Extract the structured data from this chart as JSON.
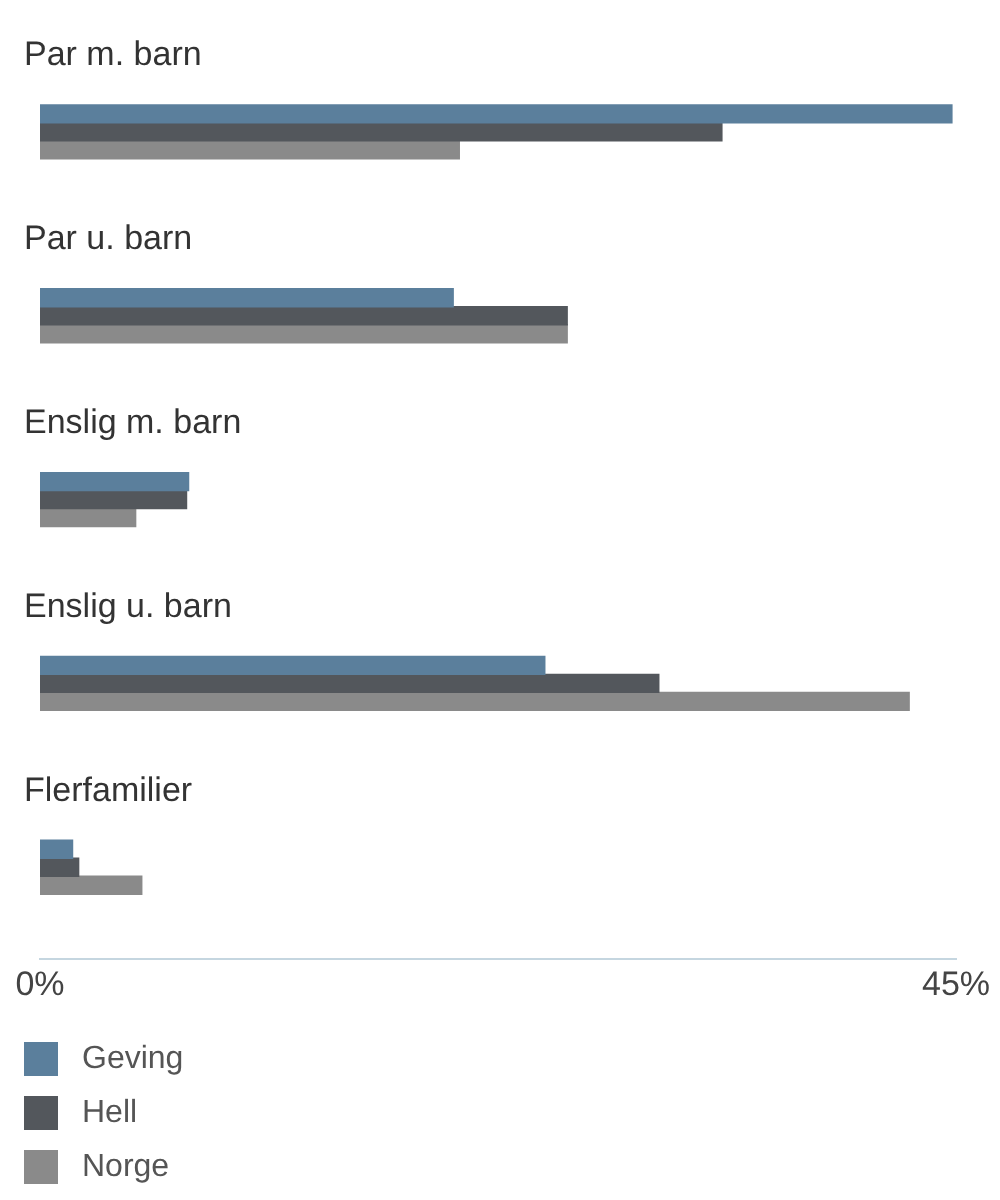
{
  "chart_data": {
    "type": "bar",
    "orientation": "horizontal",
    "categories": [
      "Par m. barn",
      "Par u. barn",
      "Enslig m. barn",
      "Enslig u. barn",
      "Flerfamilier"
    ],
    "series": [
      {
        "name": "Geving",
        "color": "#5b7f9c",
        "values": [
          44.8,
          20.3,
          7.3,
          24.8,
          1.6
        ]
      },
      {
        "name": "Hell",
        "color": "#53575c",
        "values": [
          33.5,
          25.9,
          7.2,
          30.4,
          1.9
        ]
      },
      {
        "name": "Norge",
        "color": "#8a8a8a",
        "values": [
          20.6,
          25.9,
          4.7,
          42.7,
          5.0
        ]
      }
    ],
    "xlim": [
      0,
      45
    ],
    "xticks": [
      {
        "value": 0,
        "label": "0%"
      },
      {
        "value": 45,
        "label": "45%"
      }
    ],
    "grid": false,
    "legend": "bottom"
  }
}
